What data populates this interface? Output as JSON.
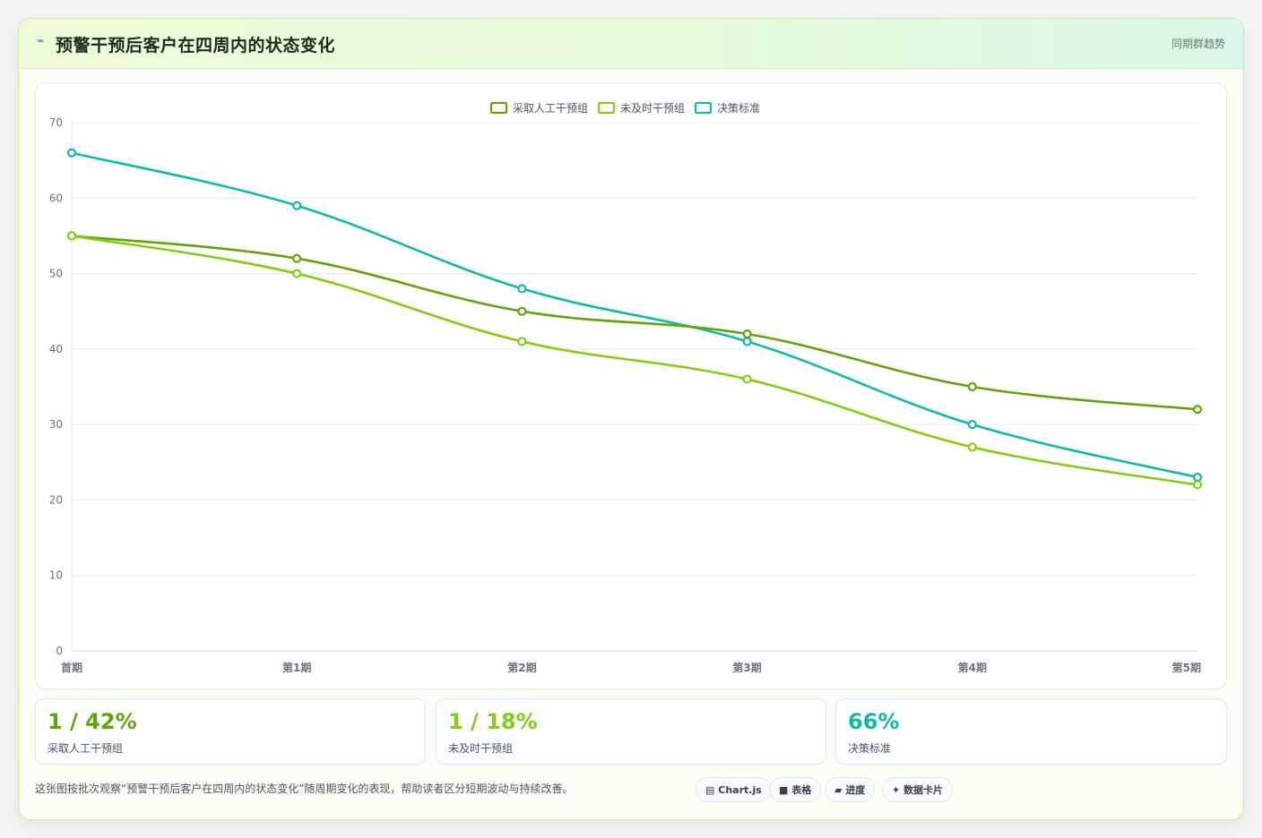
{
  "header": {
    "icon": "lightning-icon",
    "icon_glyph": "⌁",
    "title": "预警干预后客户在四周内的状态变化",
    "right_label": "同期群趋势"
  },
  "chart_data": {
    "type": "line",
    "categories": [
      "首期",
      "第1期",
      "第2期",
      "第3期",
      "第4期",
      "第5期"
    ],
    "series": [
      {
        "name": "采取人工干预组",
        "values": [
          55,
          52,
          45,
          42,
          35,
          32
        ],
        "color": "#65a30d"
      },
      {
        "name": "未及时干预组",
        "values": [
          55,
          50,
          41,
          36,
          27,
          22
        ],
        "color": "#84cc16"
      },
      {
        "name": "决策标准",
        "values": [
          66,
          59,
          48,
          41,
          30,
          23
        ],
        "color": "#14b8a6"
      }
    ],
    "ylim": [
      0,
      70
    ],
    "yticks": [
      "0",
      "10",
      "20",
      "30",
      "40",
      "50",
      "60",
      "70"
    ],
    "grid": true,
    "legend_position": "top-center"
  },
  "stats": [
    {
      "value": "1 / 42%",
      "label": "采取人工干预组",
      "color": "#65a30d"
    },
    {
      "value": "1 / 18%",
      "label": "未及时干预组",
      "color": "#84cc16"
    },
    {
      "value": "66%",
      "label": "决策标准",
      "color": "#14b8a6"
    }
  ],
  "footer": {
    "note": "这张图按批次观察“预警干预后客户在四周内的状态变化”随周期变化的表现，帮助读者区分短期波动与持续改善。",
    "chips": [
      {
        "icon": "chart-icon",
        "glyph": "▤",
        "label": "Chart.js"
      },
      {
        "icon": "table-icon",
        "glyph": "■",
        "label": "表格"
      },
      {
        "icon": "progress-icon",
        "glyph": "▰",
        "label": "进度"
      },
      {
        "icon": "card-icon",
        "glyph": "✦",
        "label": "数据卡片"
      }
    ]
  }
}
